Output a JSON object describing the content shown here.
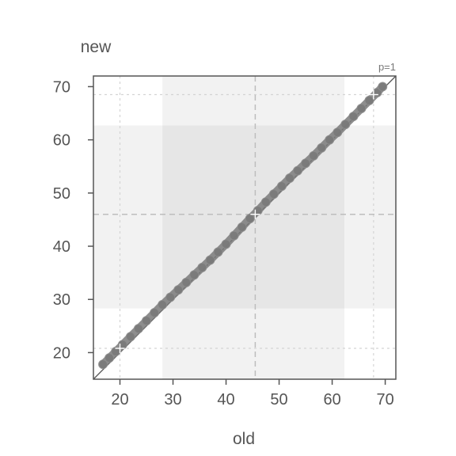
{
  "chart_data": {
    "type": "scatter",
    "title": "",
    "xlabel": "old",
    "ylabel": "new",
    "annotation": "p=1",
    "xlim": [
      15,
      72
    ],
    "ylim": [
      15,
      72
    ],
    "xticks": [
      20,
      30,
      40,
      50,
      60,
      70
    ],
    "yticks": [
      20,
      30,
      40,
      50,
      60,
      70
    ],
    "grid": true,
    "reference_line": "identity",
    "mean_x": 45.5,
    "mean_y": 46.0,
    "outer_band_x": [
      28.0,
      62.3
    ],
    "outer_band_y": [
      28.3,
      62.7
    ],
    "markers_x": [
      20.0,
      67.8
    ],
    "markers_y": [
      20.8,
      68.5
    ],
    "points": {
      "x": [
        16.8,
        18.0,
        19.2,
        20.5,
        22.0,
        23.5,
        25.0,
        26.5,
        28.0,
        29.5,
        31.0,
        32.5,
        34.0,
        35.5,
        37.0,
        38.5,
        40.0,
        41.5,
        43.0,
        44.5,
        46.0,
        47.5,
        49.0,
        50.5,
        52.0,
        53.5,
        55.0,
        56.5,
        58.0,
        59.5,
        61.0,
        62.5,
        64.0,
        65.5,
        67.0,
        68.5,
        69.5
      ],
      "y": [
        17.8,
        19.0,
        20.2,
        21.5,
        23.0,
        24.5,
        26.0,
        27.5,
        29.0,
        30.4,
        31.8,
        33.2,
        34.6,
        36.0,
        37.4,
        38.9,
        40.4,
        42.0,
        43.6,
        45.2,
        46.7,
        48.3,
        49.8,
        51.3,
        52.8,
        54.2,
        55.6,
        57.0,
        58.5,
        60.0,
        61.4,
        62.9,
        64.4,
        65.9,
        67.4,
        68.9,
        70.0
      ]
    },
    "colors": {
      "points": "#7a7a7a",
      "identity_line": "#555555",
      "outer_band": "#f2f2f2",
      "inner_band": "#e6e6e6",
      "axis": "#555555",
      "grid": "#d4d4d4",
      "mean_line": "#bdbdbd"
    }
  }
}
